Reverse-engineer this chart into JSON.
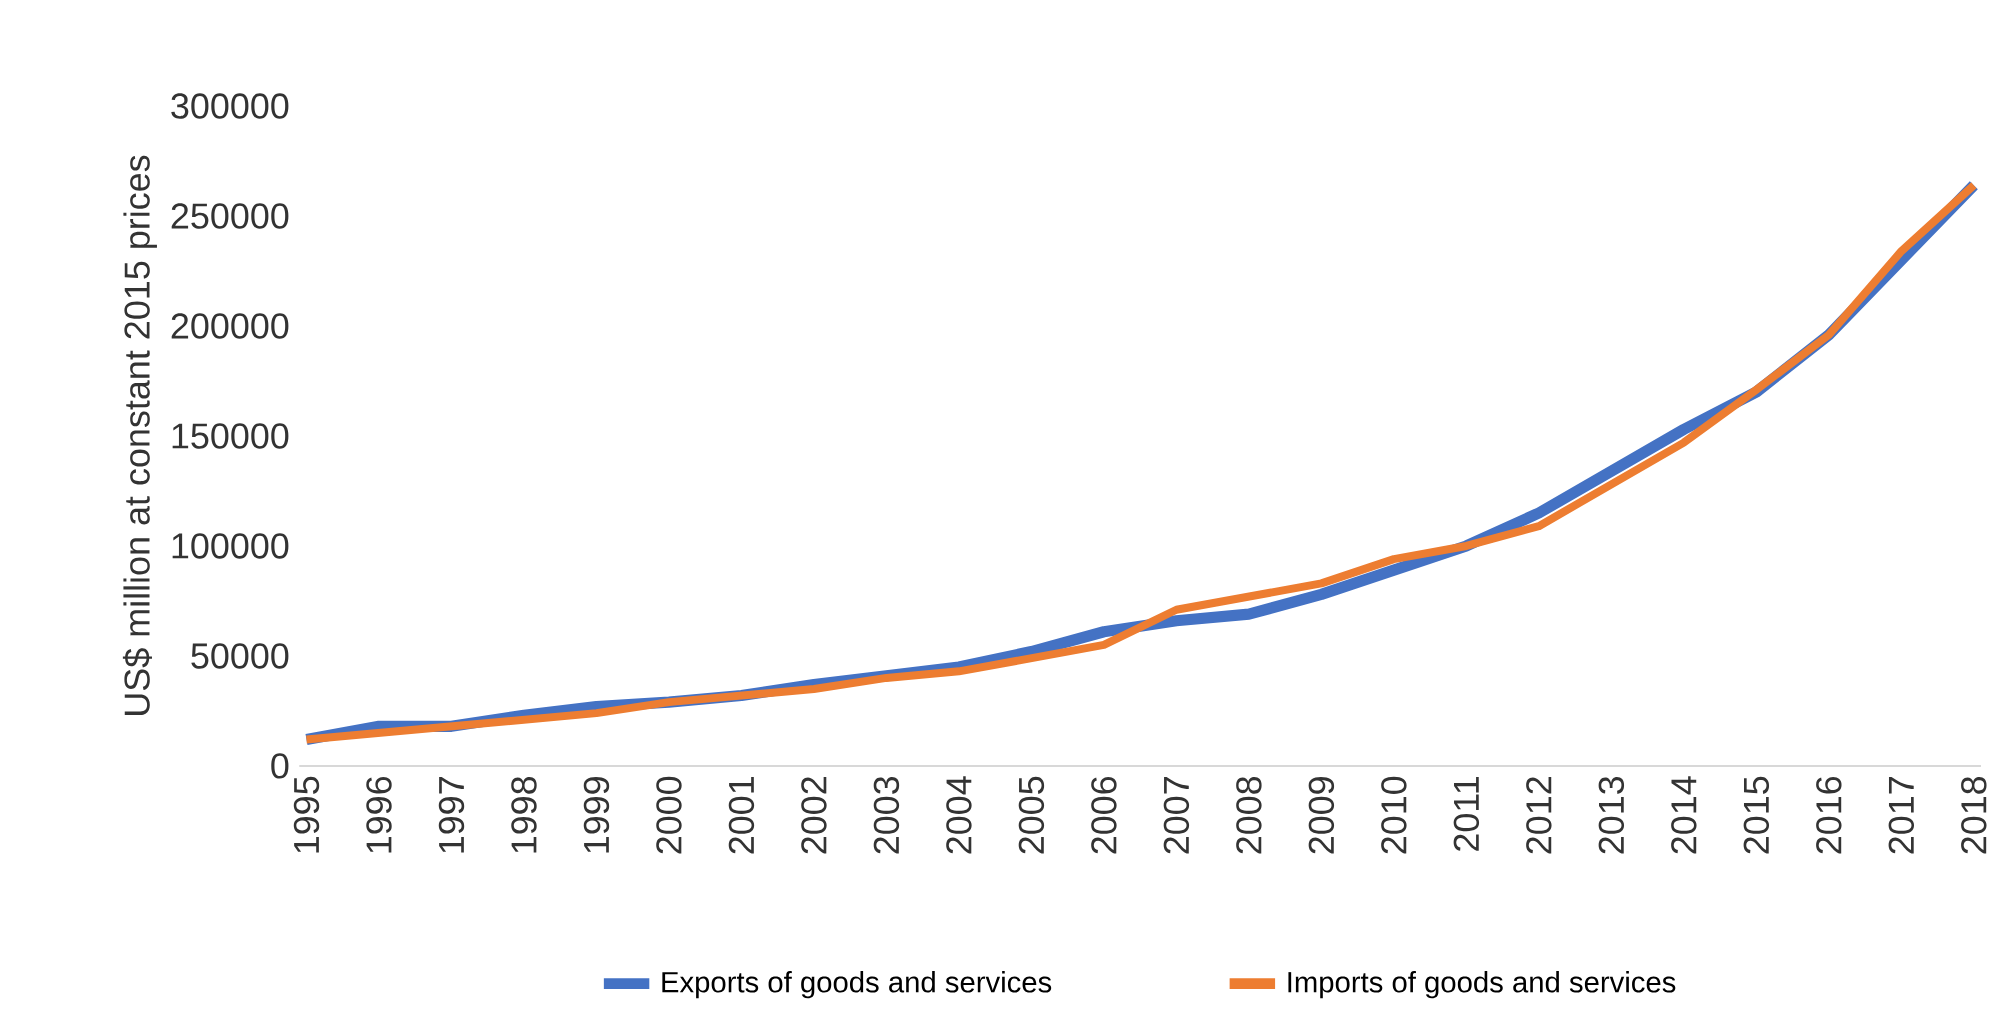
{
  "chart_data": {
    "type": "line",
    "ylabel": "US$ million at constant 2015 prices",
    "categories": [
      "1995",
      "1996",
      "1997",
      "1998",
      "1999",
      "2000",
      "2001",
      "2002",
      "2003",
      "2004",
      "2005",
      "2006",
      "2007",
      "2008",
      "2009",
      "2010",
      "2011",
      "2012",
      "2013",
      "2014",
      "2015",
      "2016",
      "2017",
      "2018"
    ],
    "series": [
      {
        "name": "Exports of goods and services",
        "color": "#4472c4",
        "values": [
          12000,
          18000,
          18000,
          23000,
          27000,
          29000,
          32000,
          37000,
          41000,
          45000,
          52000,
          61000,
          66000,
          69000,
          78000,
          89000,
          100000,
          115000,
          134000,
          153000,
          170000,
          196000,
          230000,
          264000
        ]
      },
      {
        "name": "Imports of goods and services",
        "color": "#ed7d31",
        "values": [
          12000,
          15000,
          18000,
          21000,
          24000,
          29000,
          32000,
          35000,
          40000,
          43000,
          49000,
          55000,
          71000,
          77000,
          83000,
          94000,
          100000,
          109000,
          128000,
          147000,
          171000,
          196000,
          234000,
          264000
        ]
      }
    ],
    "ylim": [
      0,
      300000
    ],
    "yticks": [
      0,
      50000,
      100000,
      150000,
      200000,
      250000,
      300000
    ],
    "grid": false,
    "legend": "bottom",
    "marker": "none",
    "line_style": "solid"
  }
}
